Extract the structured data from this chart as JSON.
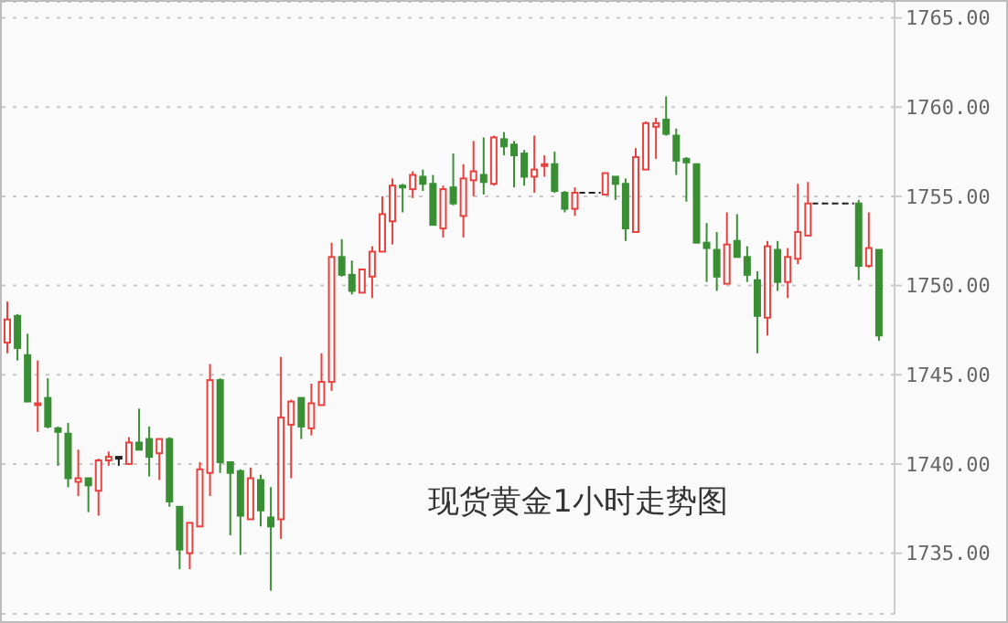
{
  "chart_data": {
    "type": "candlestick",
    "title": "现货黄金1小时走势图",
    "categories": [
      null,
      null,
      null,
      null,
      null,
      null,
      null,
      null,
      null,
      null,
      null,
      null,
      null,
      null,
      null,
      null,
      null,
      null,
      null,
      null,
      null,
      null,
      null,
      null,
      null,
      null,
      null,
      null,
      null,
      null,
      null,
      null,
      null,
      null,
      null,
      null,
      null,
      null,
      null,
      null,
      null,
      null,
      null,
      null,
      null,
      null,
      null,
      null,
      null,
      null,
      null,
      null,
      null,
      null,
      null,
      null,
      null,
      null,
      null,
      null,
      null,
      null,
      null,
      null,
      null,
      null,
      null,
      null,
      null,
      null,
      null,
      null,
      null,
      null,
      null,
      null,
      null,
      null,
      null,
      null,
      null,
      null,
      null,
      null,
      null,
      null,
      null
    ],
    "ohlc": [
      [
        1746.8,
        1749.1,
        1746.2,
        1748.1
      ],
      [
        1748.3,
        1748.4,
        1745.8,
        1746.5
      ],
      [
        1746.1,
        1747.3,
        1743.5,
        1743.5
      ],
      [
        1743.3,
        1745.8,
        1741.8,
        1743.4
      ],
      [
        1743.7,
        1744.8,
        1742.0,
        1742.1
      ],
      [
        1742.0,
        1742.1,
        1739.9,
        1741.8
      ],
      [
        1741.7,
        1742.3,
        1738.7,
        1739.2
      ],
      [
        1739.0,
        1740.8,
        1738.2,
        1739.2
      ],
      [
        1739.2,
        1739.2,
        1737.3,
        1738.8
      ],
      [
        1738.5,
        1740.3,
        1737.1,
        1740.2
      ],
      [
        1740.2,
        1740.7,
        1739.9,
        1740.4
      ],
      [
        1740.4,
        1740.4,
        1739.9,
        1740.4
      ],
      [
        1740.0,
        1741.5,
        1740.0,
        1741.2
      ],
      [
        1741.2,
        1743.1,
        1740.8,
        1740.8
      ],
      [
        1741.4,
        1742.1,
        1739.3,
        1740.4
      ],
      [
        1740.6,
        1741.4,
        1739.1,
        1741.4
      ],
      [
        1741.4,
        1741.5,
        1737.6,
        1737.9
      ],
      [
        1737.6,
        1737.6,
        1734.1,
        1735.2
      ],
      [
        1735.0,
        1736.7,
        1734.1,
        1736.7
      ],
      [
        1736.5,
        1740.1,
        1736.5,
        1739.7
      ],
      [
        1739.5,
        1745.6,
        1738.2,
        1744.7
      ],
      [
        1744.7,
        1744.8,
        1739.5,
        1740.1
      ],
      [
        1740.1,
        1740.1,
        1736.0,
        1739.5
      ],
      [
        1739.6,
        1739.7,
        1734.9,
        1737.1
      ],
      [
        1736.9,
        1739.8,
        1736.9,
        1739.2
      ],
      [
        1739.1,
        1739.4,
        1736.5,
        1737.4
      ],
      [
        1737.0,
        1738.7,
        1732.9,
        1736.5
      ],
      [
        1736.9,
        1746.0,
        1735.8,
        1742.6
      ],
      [
        1742.2,
        1743.6,
        1739.2,
        1743.5
      ],
      [
        1743.7,
        1743.7,
        1741.4,
        1742.1
      ],
      [
        1742.0,
        1744.5,
        1741.6,
        1743.4
      ],
      [
        1743.3,
        1746.2,
        1743.3,
        1744.6
      ],
      [
        1744.6,
        1752.4,
        1744.1,
        1751.6
      ],
      [
        1751.6,
        1752.6,
        1750.5,
        1750.6
      ],
      [
        1750.6,
        1751.4,
        1749.5,
        1749.7
      ],
      [
        1749.6,
        1750.9,
        1749.6,
        1750.9
      ],
      [
        1750.5,
        1752.2,
        1749.3,
        1751.9
      ],
      [
        1751.9,
        1755.0,
        1751.9,
        1754.0
      ],
      [
        1753.6,
        1756.0,
        1752.3,
        1755.6
      ],
      [
        1755.6,
        1755.7,
        1754.1,
        1755.5
      ],
      [
        1755.4,
        1756.4,
        1754.9,
        1756.2
      ],
      [
        1756.1,
        1756.5,
        1755.3,
        1755.7
      ],
      [
        1755.7,
        1756.2,
        1753.4,
        1753.4
      ],
      [
        1753.2,
        1755.6,
        1752.7,
        1755.4
      ],
      [
        1755.5,
        1757.4,
        1754.5,
        1754.6
      ],
      [
        1753.9,
        1756.8,
        1752.7,
        1756.0
      ],
      [
        1755.9,
        1758.1,
        1755.0,
        1756.4
      ],
      [
        1756.2,
        1758.3,
        1755.1,
        1755.8
      ],
      [
        1755.7,
        1758.4,
        1755.6,
        1758.3
      ],
      [
        1758.2,
        1758.6,
        1757.3,
        1757.8
      ],
      [
        1757.9,
        1758.1,
        1755.5,
        1757.3
      ],
      [
        1757.4,
        1757.6,
        1755.6,
        1756.1
      ],
      [
        1756.1,
        1758.4,
        1755.2,
        1756.5
      ],
      [
        1756.7,
        1757.3,
        1756.1,
        1756.8
      ],
      [
        1756.8,
        1757.5,
        1755.2,
        1755.3
      ],
      [
        1755.2,
        1755.3,
        1754.1,
        1754.3
      ],
      [
        1754.3,
        1755.5,
        1753.9,
        1755.2
      ],
      [
        1755.2,
        1755.2,
        1755.2,
        1755.2
      ],
      [
        1755.2,
        1755.2,
        1755.2,
        1755.2
      ],
      [
        1755.1,
        1756.3,
        1755.1,
        1756.3
      ],
      [
        1756.1,
        1756.1,
        1754.8,
        1755.7
      ],
      [
        1755.7,
        1756.0,
        1752.5,
        1753.2
      ],
      [
        1753.0,
        1757.7,
        1753.0,
        1757.2
      ],
      [
        1756.5,
        1759.2,
        1756.5,
        1759.1
      ],
      [
        1758.9,
        1759.4,
        1757.1,
        1759.1
      ],
      [
        1759.3,
        1760.6,
        1758.4,
        1758.5
      ],
      [
        1758.4,
        1758.8,
        1756.2,
        1757.0
      ],
      [
        1757.1,
        1757.2,
        1754.7,
        1756.9
      ],
      [
        1756.8,
        1756.8,
        1752.4,
        1752.4
      ],
      [
        1752.4,
        1753.5,
        1750.2,
        1752.1
      ],
      [
        1752.0,
        1753.0,
        1749.7,
        1750.5
      ],
      [
        1750.1,
        1754.1,
        1750.1,
        1752.3
      ],
      [
        1752.5,
        1754.0,
        1751.6,
        1751.6
      ],
      [
        1751.6,
        1752.2,
        1750.2,
        1750.6
      ],
      [
        1750.3,
        1750.8,
        1746.2,
        1748.3
      ],
      [
        1748.2,
        1752.5,
        1747.2,
        1752.2
      ],
      [
        1752.0,
        1752.5,
        1749.7,
        1750.2
      ],
      [
        1750.2,
        1752.1,
        1749.3,
        1751.6
      ],
      [
        1751.5,
        1755.7,
        1751.2,
        1753.0
      ],
      [
        1752.8,
        1755.8,
        1752.8,
        1754.6
      ],
      [
        1754.6,
        1754.6,
        1754.6,
        1754.6
      ],
      [
        1754.6,
        1754.6,
        1754.6,
        1754.6
      ],
      [
        1754.6,
        1754.6,
        1754.6,
        1754.6
      ],
      [
        1754.6,
        1754.6,
        1754.6,
        1754.6
      ],
      [
        1754.6,
        1754.8,
        1750.3,
        1751.1
      ],
      [
        1751.1,
        1754.1,
        1751.0,
        1752.1
      ],
      [
        1752.0,
        1752.0,
        1746.9,
        1747.2
      ]
    ],
    "ylim": [
      1731.6,
      1765.9
    ],
    "yticks": [
      {
        "value": 1735,
        "label": "1735.00"
      },
      {
        "value": 1740,
        "label": "1740.00"
      },
      {
        "value": 1745,
        "label": "1745.00"
      },
      {
        "value": 1750,
        "label": "1750.00"
      },
      {
        "value": 1755,
        "label": "1755.00"
      },
      {
        "value": 1760,
        "label": "1760.00"
      },
      {
        "value": 1765,
        "label": "1765.00"
      }
    ],
    "grid": "y",
    "tick_labels": "y"
  }
}
